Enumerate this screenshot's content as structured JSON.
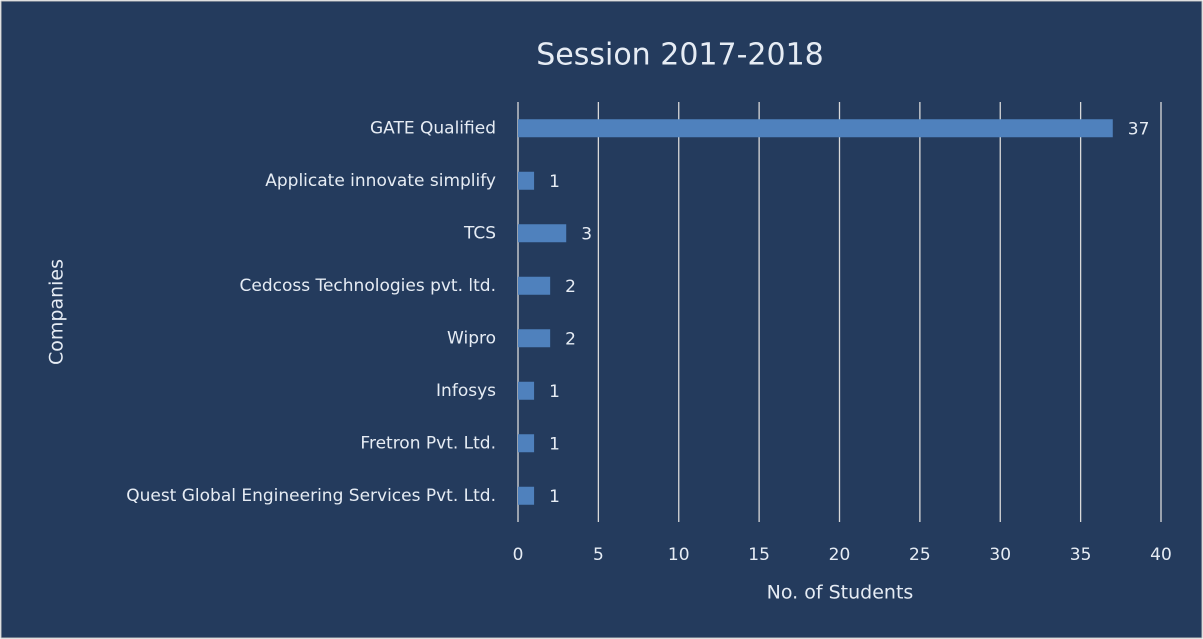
{
  "chart_data": {
    "type": "barh",
    "title": "Session 2017-2018",
    "categories": [
      "GATE Qualified",
      "Applicate innovate simplify",
      "TCS",
      "Cedcoss Technologies pvt. ltd.",
      "Wipro",
      "Infosys",
      "Fretron Pvt. Ltd.",
      "Quest Global Engineering Services Pvt. Ltd."
    ],
    "values": [
      37,
      1,
      3,
      2,
      2,
      1,
      1,
      1
    ],
    "color": "#4f81bd",
    "xlabel": "No. of Students",
    "ylabel": "Companies",
    "xlim": [
      0,
      40
    ],
    "xticks": [
      0,
      5,
      10,
      15,
      20,
      25,
      30,
      35,
      40
    ],
    "grid": true
  }
}
